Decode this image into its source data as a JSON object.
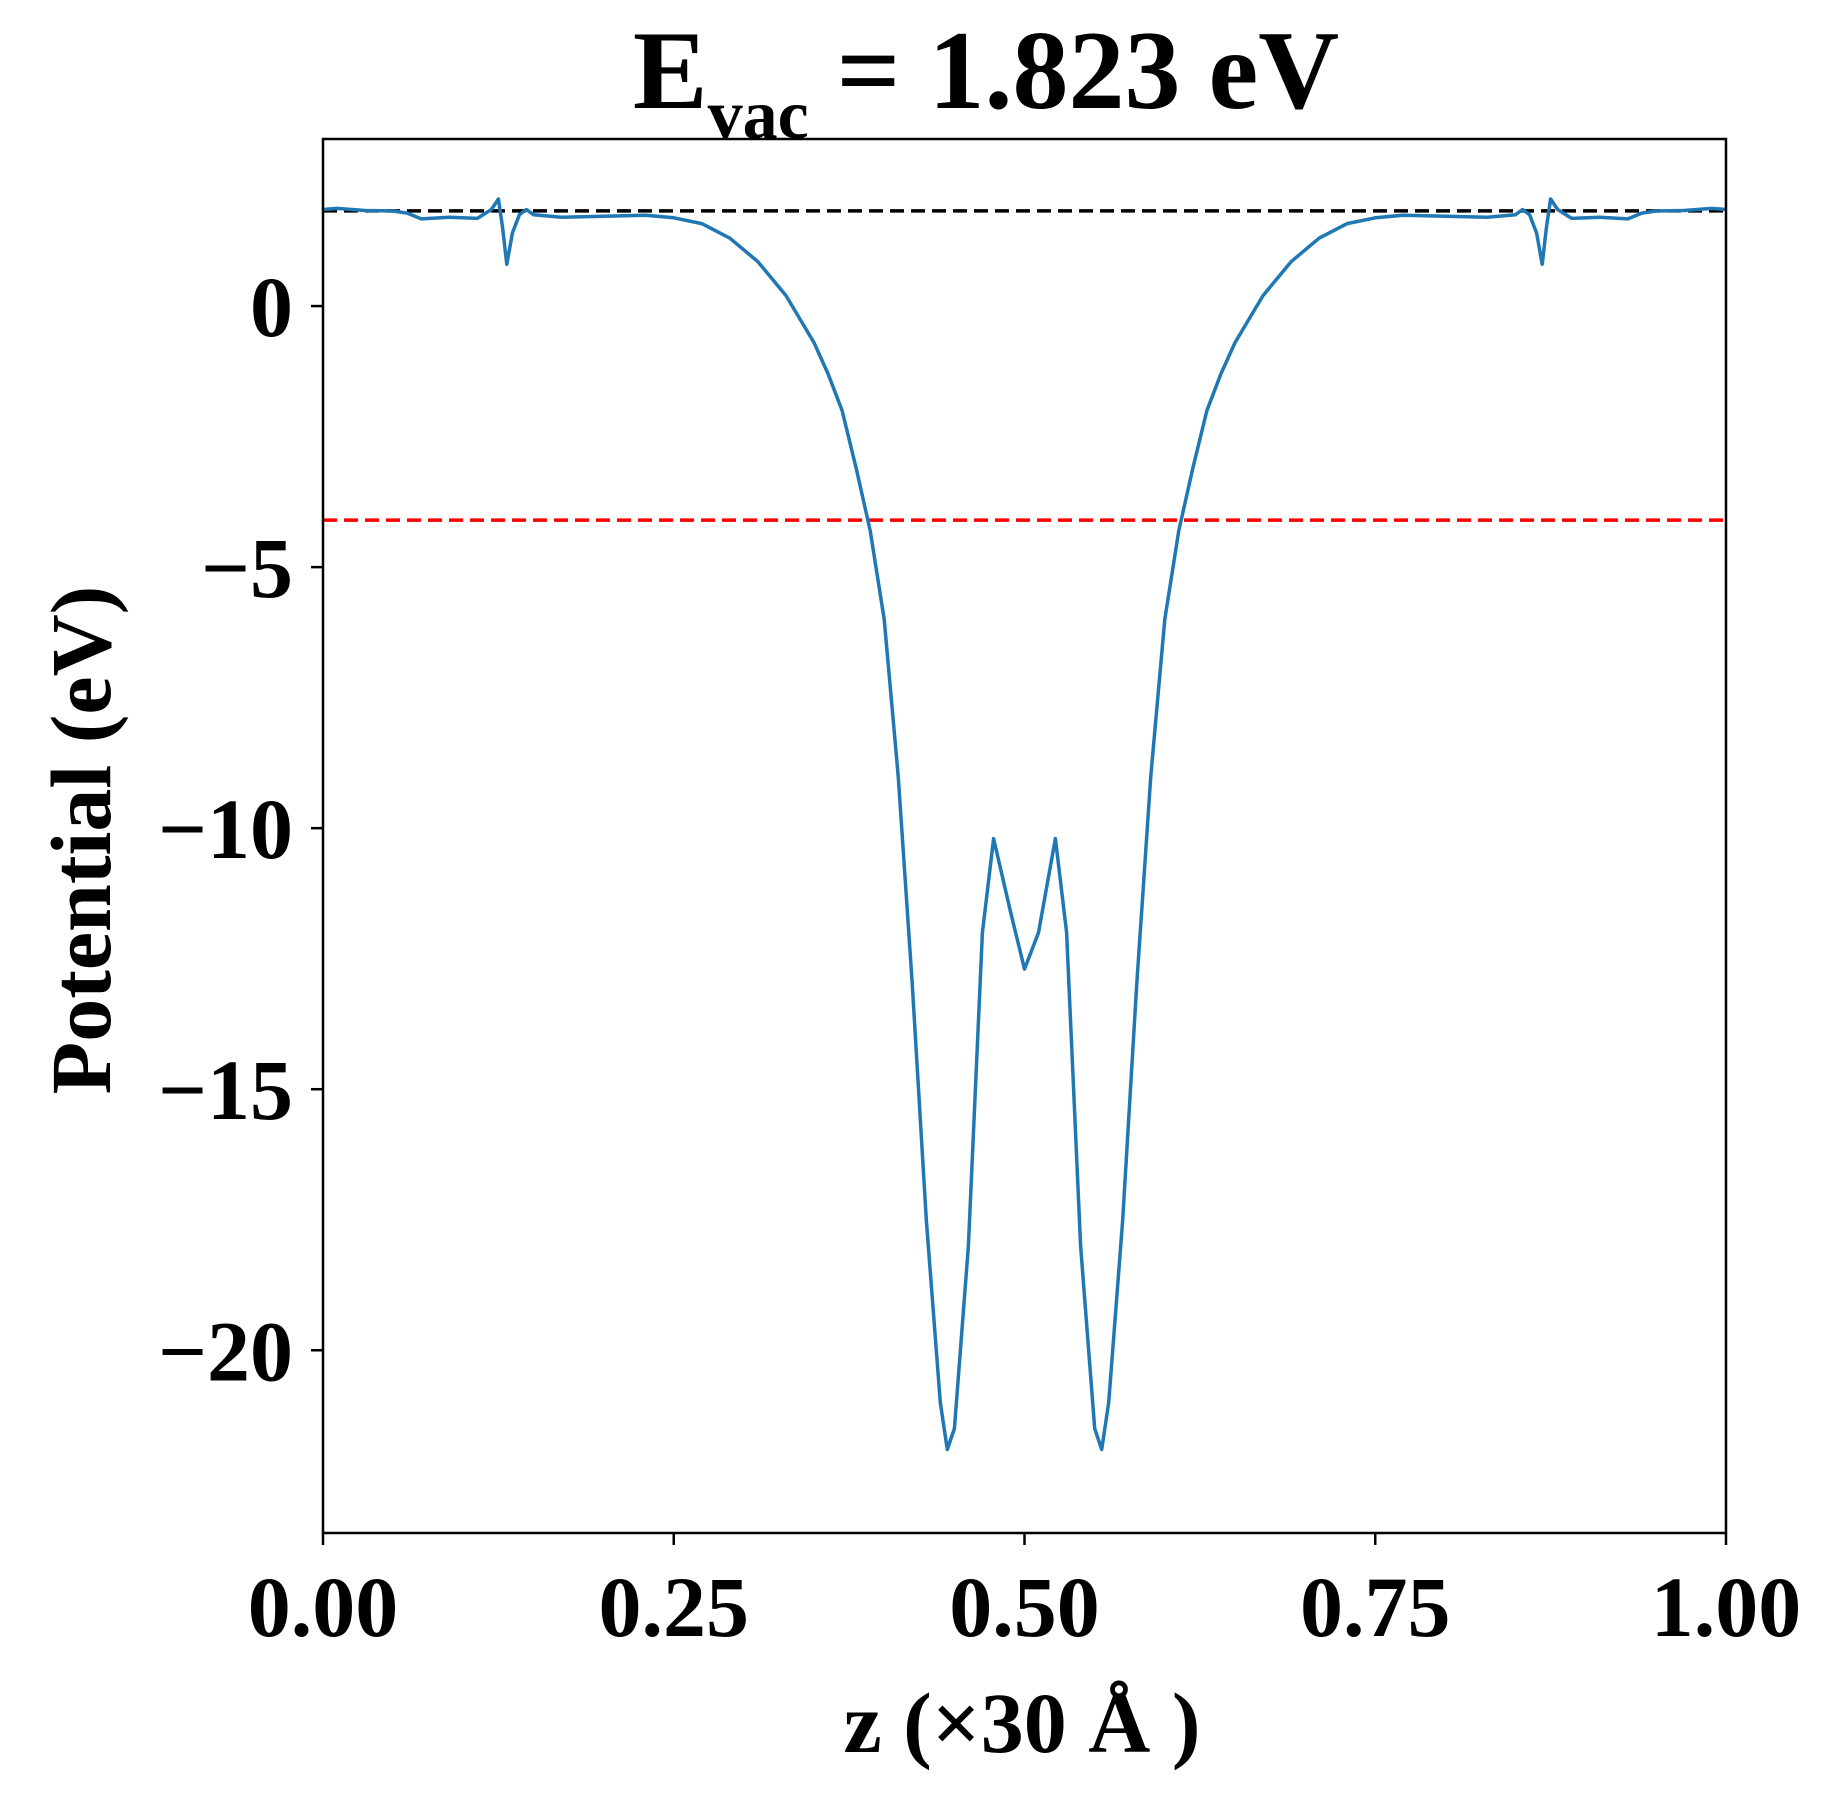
{
  "chart_data": {
    "type": "line",
    "title": {
      "prefix": "E",
      "subscript": "vac",
      "suffix": " = 1.823 eV"
    },
    "xlabel": "z (×30 Å )",
    "ylabel": "Potential (eV)",
    "xlim": [
      0,
      1
    ],
    "ylim": [
      -23.5,
      3.2
    ],
    "x_ticks": [
      0.0,
      0.25,
      0.5,
      0.75,
      1.0
    ],
    "x_tick_labels": [
      "0.00",
      "0.25",
      "0.50",
      "0.75",
      "1.00"
    ],
    "y_ticks": [
      0,
      -5,
      -10,
      -15,
      -20
    ],
    "y_tick_labels": [
      "0",
      "−5",
      "−10",
      "−15",
      "−20"
    ],
    "grid": false,
    "reference_lines": [
      {
        "y": 1.823,
        "color": "#000000",
        "style": "dashed"
      },
      {
        "y": -4.1,
        "color": "#ff0000",
        "style": "dashed"
      }
    ],
    "series": [
      {
        "color": "#1f77b4",
        "points": [
          [
            0.0,
            1.85
          ],
          [
            0.01,
            1.87
          ],
          [
            0.03,
            1.83
          ],
          [
            0.05,
            1.82
          ],
          [
            0.06,
            1.78
          ],
          [
            0.07,
            1.67
          ],
          [
            0.09,
            1.7
          ],
          [
            0.11,
            1.68
          ],
          [
            0.12,
            1.85
          ],
          [
            0.125,
            2.05
          ],
          [
            0.128,
            1.5
          ],
          [
            0.131,
            0.8
          ],
          [
            0.135,
            1.4
          ],
          [
            0.14,
            1.75
          ],
          [
            0.145,
            1.85
          ],
          [
            0.15,
            1.75
          ],
          [
            0.17,
            1.7
          ],
          [
            0.2,
            1.72
          ],
          [
            0.23,
            1.74
          ],
          [
            0.25,
            1.69
          ],
          [
            0.27,
            1.58
          ],
          [
            0.29,
            1.3
          ],
          [
            0.31,
            0.85
          ],
          [
            0.33,
            0.2
          ],
          [
            0.35,
            -0.7
          ],
          [
            0.36,
            -1.3
          ],
          [
            0.37,
            -2.0
          ],
          [
            0.38,
            -3.1
          ],
          [
            0.39,
            -4.3
          ],
          [
            0.4,
            -6.0
          ],
          [
            0.41,
            -9.0
          ],
          [
            0.42,
            -13.0
          ],
          [
            0.43,
            -17.5
          ],
          [
            0.44,
            -21.0
          ],
          [
            0.445,
            -21.9
          ],
          [
            0.45,
            -21.5
          ],
          [
            0.46,
            -18.0
          ],
          [
            0.47,
            -12.0
          ],
          [
            0.478,
            -10.2
          ],
          [
            0.49,
            -11.6
          ],
          [
            0.5,
            -12.7
          ],
          [
            0.51,
            -12.0
          ],
          [
            0.522,
            -10.2
          ],
          [
            0.53,
            -12.0
          ],
          [
            0.54,
            -18.0
          ],
          [
            0.55,
            -21.5
          ],
          [
            0.555,
            -21.9
          ],
          [
            0.56,
            -21.0
          ],
          [
            0.57,
            -17.5
          ],
          [
            0.58,
            -13.0
          ],
          [
            0.59,
            -9.0
          ],
          [
            0.6,
            -6.0
          ],
          [
            0.61,
            -4.3
          ],
          [
            0.62,
            -3.1
          ],
          [
            0.63,
            -2.0
          ],
          [
            0.64,
            -1.3
          ],
          [
            0.65,
            -0.7
          ],
          [
            0.67,
            0.2
          ],
          [
            0.69,
            0.85
          ],
          [
            0.71,
            1.3
          ],
          [
            0.73,
            1.58
          ],
          [
            0.75,
            1.69
          ],
          [
            0.77,
            1.74
          ],
          [
            0.8,
            1.72
          ],
          [
            0.83,
            1.7
          ],
          [
            0.85,
            1.75
          ],
          [
            0.855,
            1.85
          ],
          [
            0.86,
            1.75
          ],
          [
            0.865,
            1.4
          ],
          [
            0.869,
            0.8
          ],
          [
            0.872,
            1.5
          ],
          [
            0.875,
            2.05
          ],
          [
            0.88,
            1.85
          ],
          [
            0.89,
            1.68
          ],
          [
            0.91,
            1.7
          ],
          [
            0.93,
            1.67
          ],
          [
            0.94,
            1.78
          ],
          [
            0.95,
            1.82
          ],
          [
            0.97,
            1.83
          ],
          [
            0.99,
            1.87
          ],
          [
            1.0,
            1.85
          ]
        ]
      }
    ]
  }
}
